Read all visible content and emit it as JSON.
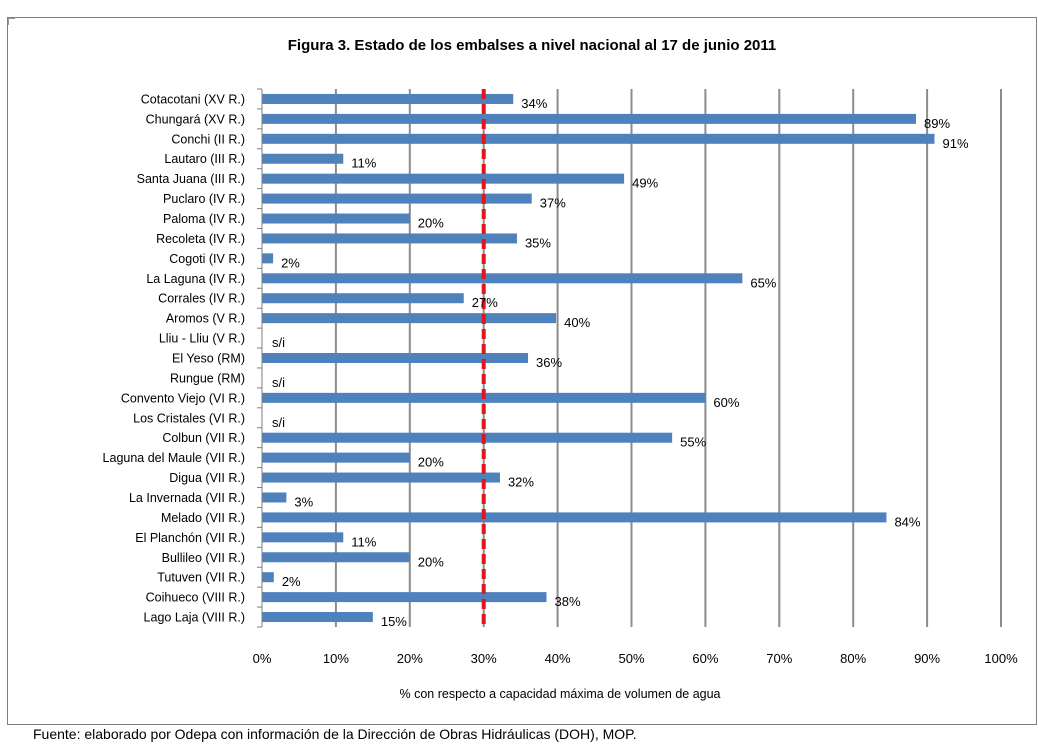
{
  "source_note": "Fuente: elaborado por Odepa con información de la Dirección de Obras Hidráulicas (DOH), MOP.",
  "colors": {
    "bar": "#4f81bd",
    "grid": "#8c8c8c",
    "reference_line": "#e3141b",
    "frame": "#7f7f7f"
  },
  "chart_data": {
    "type": "bar",
    "orientation": "horizontal",
    "title": "Figura 3. Estado de los embalses a nivel nacional al 17 de junio 2011",
    "xlabel": "% con respecto a capacidad máxima de volumen de agua",
    "ylabel": "",
    "xlim": [
      0,
      100
    ],
    "x_ticks": [
      "0%",
      "10%",
      "20%",
      "30%",
      "40%",
      "50%",
      "60%",
      "70%",
      "80%",
      "90%",
      "100%"
    ],
    "grid": "vertical",
    "reference_line": {
      "x": 30,
      "style": "dashed",
      "color": "#e3141b"
    },
    "categories": [
      "Cotacotani (XV R.)",
      "Chungará (XV R.)",
      "Conchi (II R.)",
      "Lautaro (III R.)",
      "Santa Juana (III R.)",
      "Puclaro (IV R.)",
      "Paloma (IV R.)",
      "Recoleta (IV R.)",
      "Cogoti (IV R.)",
      "La Laguna (IV R.)",
      "Corrales (IV R.)",
      "Aromos (V R.)",
      "Lliu - Lliu (V R.)",
      "El Yeso (RM)",
      "Rungue (RM)",
      "Convento Viejo (VI R.)",
      "Los Cristales (VI R.)",
      "Colbun (VII R.)",
      "Laguna del Maule (VII R.)",
      "Digua (VII R.)",
      "La Invernada (VII R.)",
      "Melado (VII R.)",
      "El Planchón (VII R.)",
      "Bullileo (VII R.)",
      "Tutuven (VII R.)",
      "Coihueco (VIII R.)",
      "Lago Laja (VIII R.)"
    ],
    "values": [
      34,
      88.5,
      91,
      11,
      49,
      36.5,
      20,
      34.5,
      1.5,
      65,
      27.3,
      39.8,
      null,
      36,
      null,
      60,
      null,
      55.5,
      20,
      32.2,
      3.3,
      84.5,
      11,
      20,
      1.6,
      38.5,
      15
    ],
    "data_labels": [
      "34%",
      "89%",
      "91%",
      "11%",
      "49%",
      "37%",
      "20%",
      "35%",
      "2%",
      "65%",
      "27%",
      "40%",
      "s/i",
      "36%",
      "s/i",
      "60%",
      "s/i",
      "55%",
      "20%",
      "32%",
      "3%",
      "84%",
      "11%",
      "20%",
      "2%",
      "38%",
      "15%"
    ]
  }
}
